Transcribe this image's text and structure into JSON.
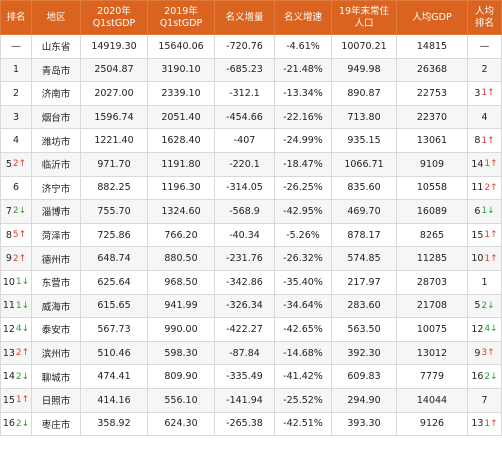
{
  "header": {
    "rank": "排名",
    "region": "地区",
    "gdp2020_l1": "2020年",
    "gdp2020_l2": "Q1stGDP",
    "gdp2019_l1": "2019年",
    "gdp2019_l2": "Q1stGDP",
    "nominal_inc": "名义增量",
    "nominal_rate": "名义增速",
    "pop_l1": "19年末常住",
    "pop_l2": "人口",
    "pcgdp": "人均GDP",
    "pcrank_l1": "人均",
    "pcrank_l2": "排名"
  },
  "colors": {
    "header_bg": "#d9631f",
    "up_arrow": "#e03c2b",
    "down_arrow": "#2e9a3a"
  },
  "rows": [
    {
      "rank": "—",
      "rank_change": "",
      "rank_dir": "",
      "region": "山东省",
      "gdp2020": "14919.30",
      "gdp2019": "15640.06",
      "inc": "-720.76",
      "rate": "-4.61%",
      "pop": "10070.21",
      "pcgdp": "14815",
      "pcrank": "—",
      "pc_change": "",
      "pc_dir": ""
    },
    {
      "rank": "1",
      "rank_change": "",
      "rank_dir": "",
      "region": "青岛市",
      "gdp2020": "2504.87",
      "gdp2019": "3190.10",
      "inc": "-685.23",
      "rate": "-21.48%",
      "pop": "949.98",
      "pcgdp": "26368",
      "pcrank": "2",
      "pc_change": "",
      "pc_dir": ""
    },
    {
      "rank": "2",
      "rank_change": "",
      "rank_dir": "",
      "region": "济南市",
      "gdp2020": "2027.00",
      "gdp2019": "2339.10",
      "inc": "-312.1",
      "rate": "-13.34%",
      "pop": "890.87",
      "pcgdp": "22753",
      "pcrank": "3",
      "pc_change": "1",
      "pc_dir": "up"
    },
    {
      "rank": "3",
      "rank_change": "",
      "rank_dir": "",
      "region": "烟台市",
      "gdp2020": "1596.74",
      "gdp2019": "2051.40",
      "inc": "-454.66",
      "rate": "-22.16%",
      "pop": "713.80",
      "pcgdp": "22370",
      "pcrank": "4",
      "pc_change": "",
      "pc_dir": ""
    },
    {
      "rank": "4",
      "rank_change": "",
      "rank_dir": "",
      "region": "潍坊市",
      "gdp2020": "1221.40",
      "gdp2019": "1628.40",
      "inc": "-407",
      "rate": "-24.99%",
      "pop": "935.15",
      "pcgdp": "13061",
      "pcrank": "8",
      "pc_change": "1",
      "pc_dir": "up"
    },
    {
      "rank": "5",
      "rank_change": "2",
      "rank_dir": "up",
      "region": "临沂市",
      "gdp2020": "971.70",
      "gdp2019": "1191.80",
      "inc": "-220.1",
      "rate": "-18.47%",
      "pop": "1066.71",
      "pcgdp": "9109",
      "pcrank": "14",
      "pc_change": "1",
      "pc_dir": "up"
    },
    {
      "rank": "6",
      "rank_change": "",
      "rank_dir": "",
      "region": "济宁市",
      "gdp2020": "882.25",
      "gdp2019": "1196.30",
      "inc": "-314.05",
      "rate": "-26.25%",
      "pop": "835.60",
      "pcgdp": "10558",
      "pcrank": "11",
      "pc_change": "2",
      "pc_dir": "up"
    },
    {
      "rank": "7",
      "rank_change": "2",
      "rank_dir": "down",
      "region": "淄博市",
      "gdp2020": "755.70",
      "gdp2019": "1324.60",
      "inc": "-568.9",
      "rate": "-42.95%",
      "pop": "469.70",
      "pcgdp": "16089",
      "pcrank": "6",
      "pc_change": "1",
      "pc_dir": "down"
    },
    {
      "rank": "8",
      "rank_change": "5",
      "rank_dir": "up",
      "region": "菏泽市",
      "gdp2020": "725.86",
      "gdp2019": "766.20",
      "inc": "-40.34",
      "rate": "-5.26%",
      "pop": "878.17",
      "pcgdp": "8265",
      "pcrank": "15",
      "pc_change": "1",
      "pc_dir": "up"
    },
    {
      "rank": "9",
      "rank_change": "2",
      "rank_dir": "up",
      "region": "德州市",
      "gdp2020": "648.74",
      "gdp2019": "880.50",
      "inc": "-231.76",
      "rate": "-26.32%",
      "pop": "574.85",
      "pcgdp": "11285",
      "pcrank": "10",
      "pc_change": "1",
      "pc_dir": "up"
    },
    {
      "rank": "10",
      "rank_change": "1",
      "rank_dir": "down",
      "region": "东营市",
      "gdp2020": "625.64",
      "gdp2019": "968.50",
      "inc": "-342.86",
      "rate": "-35.40%",
      "pop": "217.97",
      "pcgdp": "28703",
      "pcrank": "1",
      "pc_change": "",
      "pc_dir": ""
    },
    {
      "rank": "11",
      "rank_change": "1",
      "rank_dir": "down",
      "region": "威海市",
      "gdp2020": "615.65",
      "gdp2019": "941.99",
      "inc": "-326.34",
      "rate": "-34.64%",
      "pop": "283.60",
      "pcgdp": "21708",
      "pcrank": "5",
      "pc_change": "2",
      "pc_dir": "down"
    },
    {
      "rank": "12",
      "rank_change": "4",
      "rank_dir": "down",
      "region": "泰安市",
      "gdp2020": "567.73",
      "gdp2019": "990.00",
      "inc": "-422.27",
      "rate": "-42.65%",
      "pop": "563.50",
      "pcgdp": "10075",
      "pcrank": "12",
      "pc_change": "4",
      "pc_dir": "down"
    },
    {
      "rank": "13",
      "rank_change": "2",
      "rank_dir": "up",
      "region": "滨州市",
      "gdp2020": "510.46",
      "gdp2019": "598.30",
      "inc": "-87.84",
      "rate": "-14.68%",
      "pop": "392.30",
      "pcgdp": "13012",
      "pcrank": "9",
      "pc_change": "3",
      "pc_dir": "up"
    },
    {
      "rank": "14",
      "rank_change": "2",
      "rank_dir": "down",
      "region": "聊城市",
      "gdp2020": "474.41",
      "gdp2019": "809.90",
      "inc": "-335.49",
      "rate": "-41.42%",
      "pop": "609.83",
      "pcgdp": "7779",
      "pcrank": "16",
      "pc_change": "2",
      "pc_dir": "down"
    },
    {
      "rank": "15",
      "rank_change": "1",
      "rank_dir": "up",
      "region": "日照市",
      "gdp2020": "414.16",
      "gdp2019": "556.10",
      "inc": "-141.94",
      "rate": "-25.52%",
      "pop": "294.90",
      "pcgdp": "14044",
      "pcrank": "7",
      "pc_change": "",
      "pc_dir": ""
    },
    {
      "rank": "16",
      "rank_change": "2",
      "rank_dir": "down",
      "region": "枣庄市",
      "gdp2020": "358.92",
      "gdp2019": "624.30",
      "inc": "-265.38",
      "rate": "-42.51%",
      "pop": "393.30",
      "pcgdp": "9126",
      "pcrank": "13",
      "pc_change": "1",
      "pc_dir": "up"
    }
  ]
}
